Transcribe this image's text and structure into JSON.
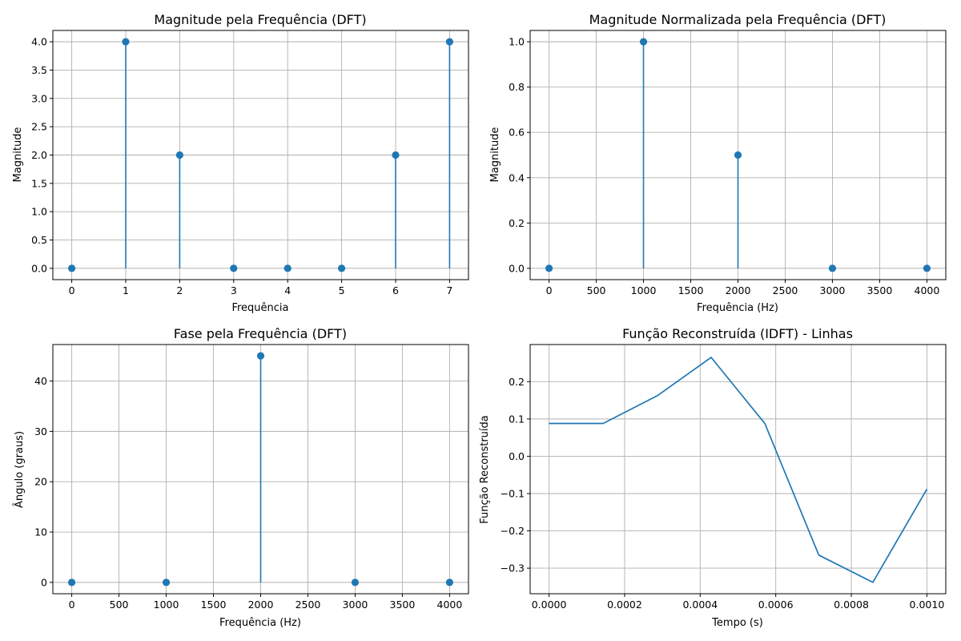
{
  "chart_data": [
    {
      "type": "stem",
      "title": "Magnitude pela Frequência (DFT)",
      "xlabel": "Frequência",
      "ylabel": "Magnitude",
      "xlim": [
        -0.35,
        7.35
      ],
      "ylim": [
        -0.2,
        4.2
      ],
      "xticks": [
        0,
        1,
        2,
        3,
        4,
        5,
        6,
        7
      ],
      "xtick_labels": [
        "0",
        "1",
        "2",
        "3",
        "4",
        "5",
        "6",
        "7"
      ],
      "yticks": [
        0,
        0.5,
        1,
        1.5,
        2,
        2.5,
        3,
        3.5,
        4
      ],
      "ytick_labels": [
        "0.0",
        "0.5",
        "1.0",
        "1.5",
        "2.0",
        "2.5",
        "3.0",
        "3.5",
        "4.0"
      ],
      "grid": true,
      "color": "#1f77b4",
      "x": [
        0,
        1,
        2,
        3,
        4,
        5,
        6,
        7
      ],
      "values": [
        0,
        4,
        2,
        0,
        0,
        0,
        2,
        4
      ]
    },
    {
      "type": "stem",
      "title": "Magnitude Normalizada pela Frequência (DFT)",
      "xlabel": "Frequência (Hz)",
      "ylabel": "Magnitude",
      "xlim": [
        -200,
        4200
      ],
      "ylim": [
        -0.05,
        1.05
      ],
      "xticks": [
        0,
        500,
        1000,
        1500,
        2000,
        2500,
        3000,
        3500,
        4000
      ],
      "xtick_labels": [
        "0",
        "500",
        "1000",
        "1500",
        "2000",
        "2500",
        "3000",
        "3500",
        "4000"
      ],
      "yticks": [
        0,
        0.2,
        0.4,
        0.6,
        0.8,
        1.0
      ],
      "ytick_labels": [
        "0.0",
        "0.2",
        "0.4",
        "0.6",
        "0.8",
        "1.0"
      ],
      "grid": true,
      "color": "#1f77b4",
      "x": [
        0,
        1000,
        2000,
        3000,
        4000
      ],
      "values": [
        0,
        1.0,
        0.5,
        0,
        0
      ]
    },
    {
      "type": "stem",
      "title": "Fase pela Frequência (DFT)",
      "xlabel": "Frequência (Hz)",
      "ylabel": "Ângulo (graus)",
      "xlim": [
        -200,
        4200
      ],
      "ylim": [
        -2.25,
        47.25
      ],
      "xticks": [
        0,
        500,
        1000,
        1500,
        2000,
        2500,
        3000,
        3500,
        4000
      ],
      "xtick_labels": [
        "0",
        "500",
        "1000",
        "1500",
        "2000",
        "2500",
        "3000",
        "3500",
        "4000"
      ],
      "yticks": [
        0,
        10,
        20,
        30,
        40
      ],
      "ytick_labels": [
        "0",
        "10",
        "20",
        "30",
        "40"
      ],
      "grid": true,
      "color": "#1f77b4",
      "x": [
        0,
        1000,
        2000,
        3000,
        4000
      ],
      "values": [
        0,
        0,
        45,
        0,
        0
      ]
    },
    {
      "type": "line",
      "title": "Função Reconstruída (IDFT) - Linhas",
      "xlabel": "Tempo (s)",
      "ylabel": "Função Reconstruída",
      "xlim": [
        -5e-05,
        0.00105
      ],
      "ylim": [
        -0.3685,
        0.2995
      ],
      "xticks": [
        0,
        0.0002,
        0.0004,
        0.0006,
        0.0008,
        0.001
      ],
      "xtick_labels": [
        "0.0000",
        "0.0002",
        "0.0004",
        "0.0006",
        "0.0008",
        "0.0010"
      ],
      "yticks": [
        -0.3,
        -0.2,
        -0.1,
        0.0,
        0.1,
        0.2
      ],
      "ytick_labels": [
        "−0.3",
        "−0.2",
        "−0.1",
        "0.0",
        "0.1",
        "0.2"
      ],
      "grid": true,
      "color": "#1f77b4",
      "x": [
        0,
        0.000143,
        0.000286,
        0.000429,
        0.000571,
        0.000714,
        0.000857,
        0.001
      ],
      "values": [
        0.088,
        0.088,
        0.162,
        0.265,
        0.088,
        -0.265,
        -0.338,
        -0.088
      ]
    }
  ]
}
